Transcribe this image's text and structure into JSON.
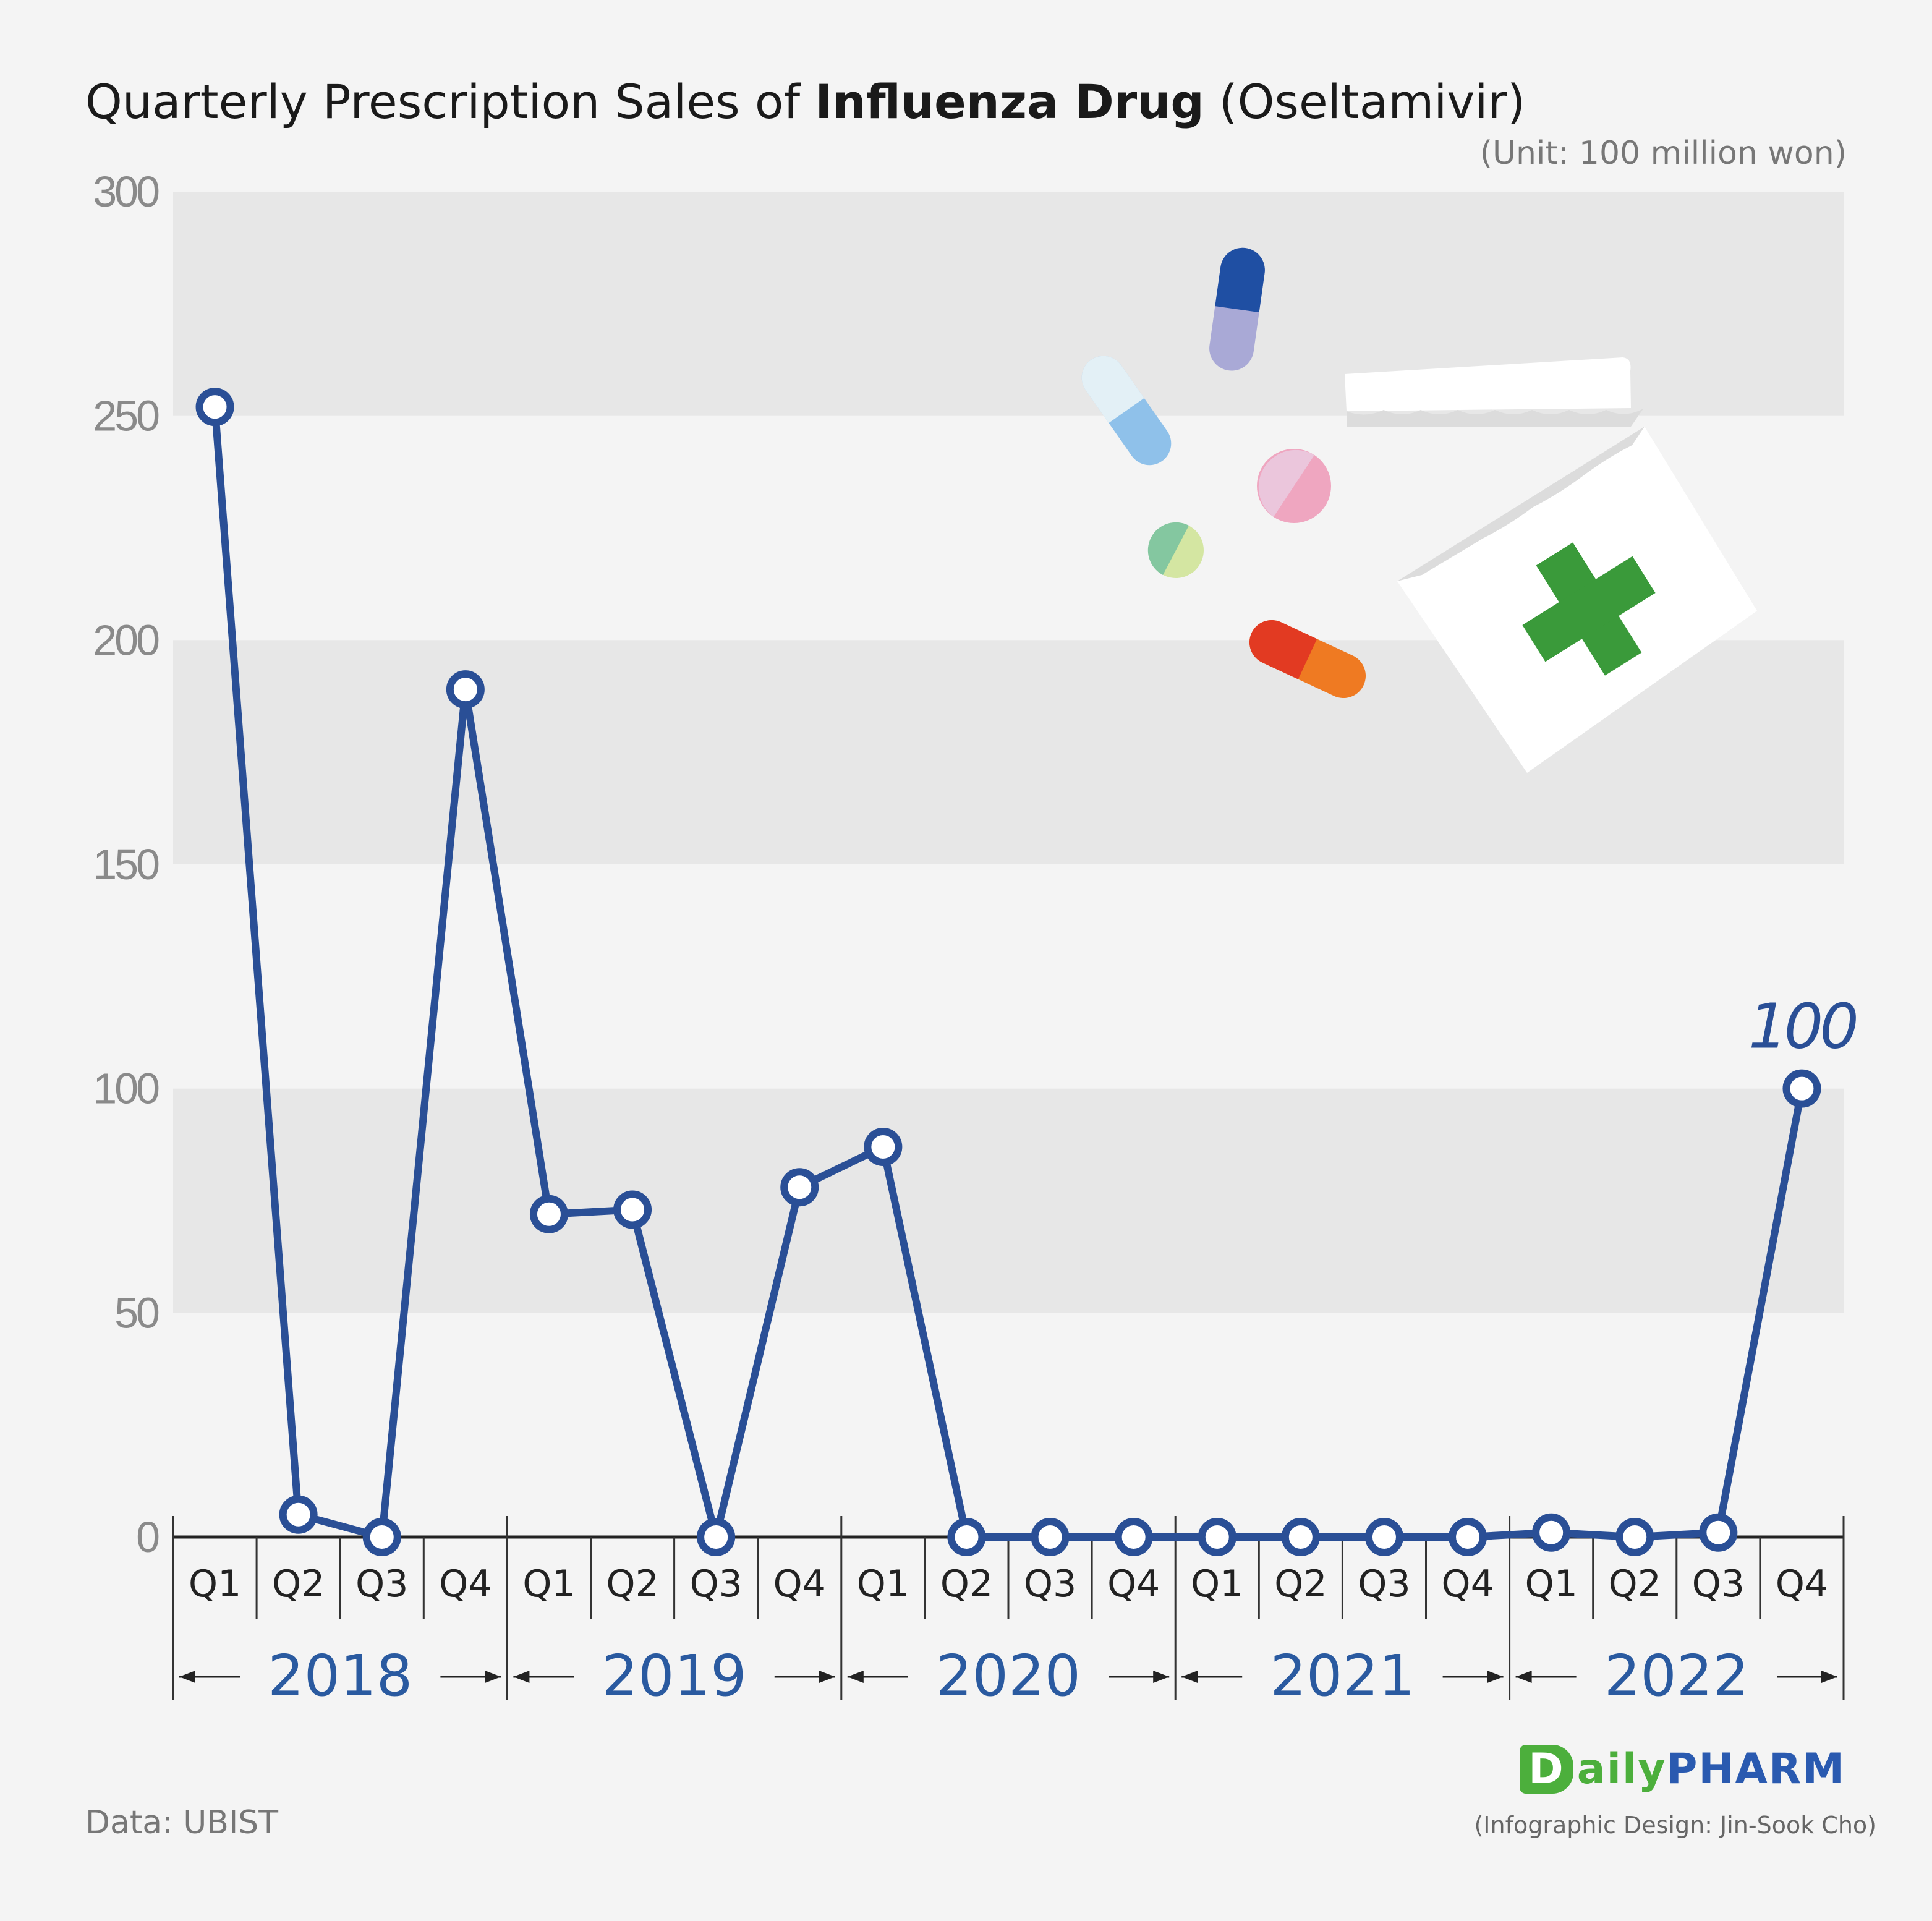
{
  "title": {
    "prefix": "Quarterly Prescription Sales of ",
    "bold": "Influenza Drug",
    "suffix": " (Oseltamivir)"
  },
  "unit_label": "(Unit: 100 million won)",
  "source": "Data: UBIST",
  "logo": {
    "d": "D",
    "ily": "aily",
    "pharm": "PHARM"
  },
  "credit": "(Infographic Design: Jin-Sook Cho)",
  "colors": {
    "line": "#2a4f96",
    "year_text": "#2a5aa0",
    "band": "#e7e7e7",
    "background": "#f4f4f4",
    "axis_text": "#8a8a8a"
  },
  "chart_data": {
    "type": "line",
    "title": "Quarterly Prescription Sales of Influenza Drug (Oseltamivir)",
    "ylabel": "(Unit: 100 million won)",
    "ylim": [
      0,
      300
    ],
    "yticks": [
      0,
      50,
      100,
      150,
      200,
      250,
      300
    ],
    "categories": [
      "Q1",
      "Q2",
      "Q3",
      "Q4",
      "Q1",
      "Q2",
      "Q3",
      "Q4",
      "Q1",
      "Q2",
      "Q3",
      "Q4",
      "Q1",
      "Q2",
      "Q3",
      "Q4",
      "Q1",
      "Q2",
      "Q3",
      "Q4"
    ],
    "years": [
      "2018",
      "2019",
      "2020",
      "2021",
      "2022"
    ],
    "series": [
      {
        "values": [
          252,
          5,
          0,
          189,
          72,
          73,
          0,
          78,
          87,
          0,
          0,
          0,
          0,
          0,
          0,
          0,
          1,
          0,
          1,
          100
        ]
      }
    ],
    "annotations": [
      {
        "index": 19,
        "text": "100"
      }
    ],
    "grid": "alternating horizontal bands",
    "legend": "none"
  }
}
